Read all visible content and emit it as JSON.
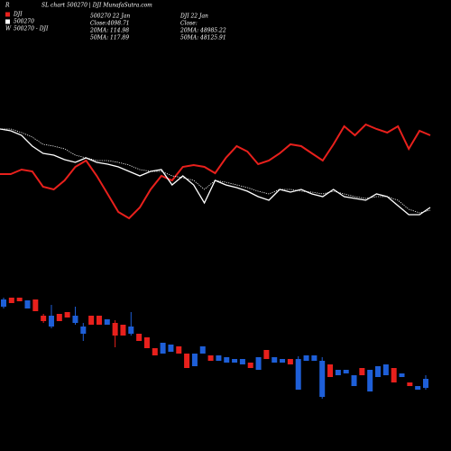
{
  "header": {
    "corner": "R",
    "title": "SL chart 500270 | DJI MunafaSutra.com"
  },
  "chart_data": [
    {
      "type": "line",
      "ylim": [
        0,
        500
      ],
      "series": [
        {
          "name": "DJI",
          "color": "#e8201c",
          "style": "solid",
          "values": [
            307,
            307,
            312,
            310,
            293,
            290,
            300,
            315,
            322,
            305,
            285,
            265,
            258,
            270,
            290,
            305,
            300,
            315,
            317,
            315,
            308,
            325,
            338,
            332,
            318,
            322,
            330,
            340,
            338,
            330,
            322,
            340,
            360,
            350,
            362,
            357,
            353,
            360,
            335,
            355,
            350
          ]
        },
        {
          "name": "500270",
          "color": "#ffffff",
          "style": "solid",
          "values": [
            357,
            355,
            350,
            338,
            330,
            328,
            323,
            320,
            325,
            320,
            318,
            315,
            310,
            305,
            310,
            312,
            295,
            305,
            295,
            275,
            300,
            295,
            292,
            288,
            282,
            278,
            290,
            287,
            290,
            285,
            282,
            290,
            282,
            280,
            278,
            285,
            282,
            272,
            262,
            262,
            270
          ]
        },
        {
          "name": "500270 - DJI",
          "color": "#ffffff",
          "style": "dotted",
          "values": [
            357,
            357,
            353,
            348,
            340,
            338,
            335,
            328,
            325,
            322,
            322,
            320,
            317,
            312,
            310,
            310,
            305,
            303,
            300,
            290,
            300,
            298,
            295,
            292,
            288,
            285,
            290,
            290,
            288,
            287,
            285,
            288,
            285,
            282,
            280,
            282,
            282,
            278,
            268,
            264,
            267
          ]
        }
      ],
      "annotations": [
        [
          "500270 22 Jan",
          "Close:4098.71",
          "20MA: 114.98",
          "50MA: 117.89"
        ],
        [
          "DJI 22 Jan",
          "Close:",
          "20MA: 48985.22",
          "50MA: 48125.91"
        ]
      ]
    },
    {
      "type": "candlestick",
      "ylim": [
        0,
        500
      ],
      "up_color": "#1e5fd8",
      "down_color": "#e8201c",
      "open": [
        160,
        170,
        170,
        158,
        168,
        150,
        138,
        152,
        154,
        142,
        130,
        150,
        150,
        140,
        142,
        140,
        130,
        130,
        126,
        114,
        108,
        110,
        116,
        108,
        94,
        108,
        106,
        100,
        98,
        98,
        96,
        98,
        90,
        112,
        98,
        98,
        102,
        68,
        100,
        100,
        60,
        96,
        84,
        86,
        72,
        92,
        66,
        82,
        84,
        92,
        82,
        76,
        68,
        70
      ],
      "close": [
        168,
        164,
        166,
        167,
        155,
        144,
        150,
        144,
        148,
        150,
        138,
        140,
        140,
        146,
        128,
        128,
        138,
        122,
        114,
        106,
        120,
        118,
        108,
        92,
        108,
        116,
        100,
        106,
        104,
        102,
        102,
        92,
        104,
        102,
        104,
        102,
        96,
        102,
        106,
        106,
        100,
        82,
        90,
        90,
        84,
        84,
        90,
        94,
        96,
        76,
        86,
        72,
        72,
        80
      ],
      "high": [
        170,
        170,
        170,
        167,
        168,
        152,
        162,
        152,
        154,
        160,
        142,
        150,
        150,
        146,
        145,
        140,
        154,
        130,
        126,
        114,
        120,
        118,
        116,
        108,
        108,
        116,
        106,
        106,
        104,
        102,
        102,
        98,
        104,
        112,
        104,
        102,
        102,
        105,
        106,
        106,
        104,
        96,
        90,
        90,
        84,
        92,
        90,
        94,
        96,
        92,
        86,
        76,
        72,
        84
      ],
      "low": [
        158,
        164,
        166,
        158,
        155,
        142,
        136,
        144,
        148,
        140,
        122,
        140,
        140,
        140,
        115,
        128,
        128,
        122,
        114,
        106,
        108,
        110,
        108,
        92,
        94,
        108,
        100,
        100,
        98,
        98,
        96,
        92,
        90,
        102,
        98,
        98,
        96,
        68,
        100,
        100,
        58,
        82,
        84,
        86,
        72,
        84,
        66,
        82,
        84,
        76,
        82,
        72,
        68,
        68
      ]
    }
  ]
}
